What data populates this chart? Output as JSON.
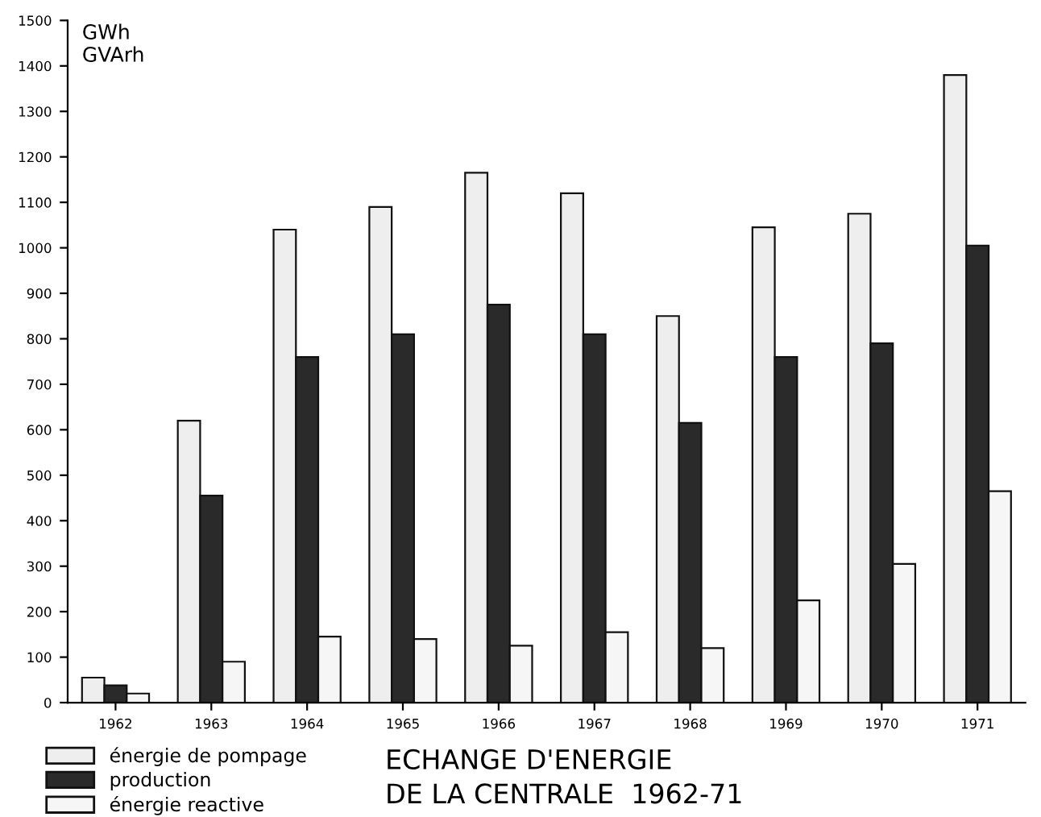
{
  "chart_data": {
    "type": "bar",
    "title": "ECHANGE D'ENERGIE\nDE LA CENTRALE  1962-71",
    "ylabel": "GWh\nGVArh",
    "categories": [
      "1962",
      "1963",
      "1964",
      "1965",
      "1966",
      "1967",
      "1968",
      "1969",
      "1970",
      "1971"
    ],
    "series": [
      {
        "name": "énergie de pompage",
        "color": "#eeeeee",
        "values": [
          55,
          620,
          1040,
          1090,
          1165,
          1120,
          850,
          1045,
          1075,
          1380
        ]
      },
      {
        "name": "production",
        "color": "#2a2a2a",
        "values": [
          38,
          455,
          760,
          810,
          875,
          810,
          615,
          760,
          790,
          1005
        ]
      },
      {
        "name": "énergie reactive",
        "color": "#f6f6f6",
        "values": [
          20,
          90,
          145,
          140,
          125,
          155,
          120,
          225,
          305,
          465
        ]
      }
    ],
    "ylim": [
      0,
      1500
    ],
    "yticks": [
      0,
      100,
      200,
      300,
      400,
      500,
      600,
      700,
      800,
      900,
      1000,
      1100,
      1200,
      1300,
      1400,
      1500
    ],
    "grid": false,
    "legend": "bottom left"
  }
}
